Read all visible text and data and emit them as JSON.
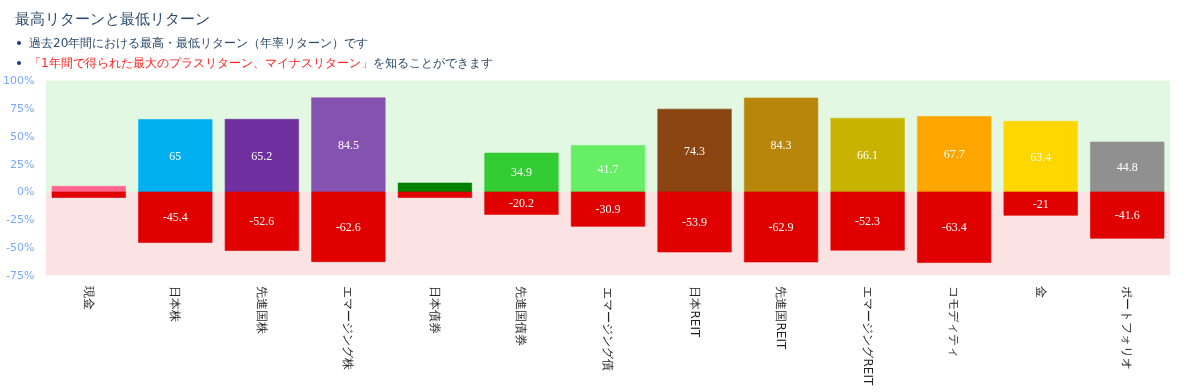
{
  "chart_data": {
    "type": "bar",
    "title": "最高リターンと最低リターン",
    "subtitle": "過去20年間における最高・最低リターン（年率リターン）です",
    "annotations": [
      "「1年間で得られた最大のプラスリターン、マイナスリターン」",
      "を知ることができます"
    ],
    "categories": [
      "現金",
      "日本株",
      "先進国株",
      "エマージング株",
      "日本債券",
      "先進国債券",
      "エマージング債",
      "日本REIT",
      "先進国REIT",
      "エマージングREIT",
      "コモディティ",
      "金",
      "ポートフォリオ"
    ],
    "stacked": true,
    "series": [
      {
        "colors": [
          "#ff6690",
          "#00b0f0",
          "#7030a0",
          "#8652b0",
          "#008000",
          "#33cc33",
          "#66ee66",
          "#8b4513",
          "#b8860b",
          "#c8b400",
          "#ffa500",
          "#ffd700",
          "#909090"
        ],
        "values": [
          5,
          65,
          65.2,
          84.5,
          8,
          34.9,
          41.7,
          74.3,
          84.3,
          66.1,
          67.7,
          63.4,
          44.8
        ],
        "value_labels": [
          null,
          "65",
          "65.2",
          "84.5",
          null,
          "34.9",
          "41.7",
          "74.3",
          "84.3",
          "66.1",
          "67.7",
          "63.4",
          "44.8"
        ]
      },
      {
        "color": "#e00000",
        "values": [
          -5,
          -45.4,
          -52.6,
          -62.6,
          -5,
          -20.2,
          -30.9,
          -53.9,
          -62.9,
          -52.3,
          -63.4,
          -21,
          -41.6
        ],
        "value_labels": [
          null,
          "-45.4",
          "-52.6",
          "-62.6",
          null,
          "-20.2",
          "-30.9",
          "-53.9",
          "-62.9",
          "-52.3",
          "-63.4",
          "-21",
          "-41.6"
        ]
      }
    ],
    "ylim": [
      -75,
      100
    ],
    "yticks": [
      {
        "value": -75,
        "label": "-75%"
      },
      {
        "value": -50,
        "label": "-50%"
      },
      {
        "value": -25,
        "label": "-25%"
      },
      {
        "value": 0,
        "label": "0%"
      },
      {
        "value": 25,
        "label": "25%"
      },
      {
        "value": 50,
        "label": "50%"
      },
      {
        "value": 75,
        "label": "75%"
      },
      {
        "value": 100,
        "label": "100%"
      }
    ],
    "grid": "y",
    "bands": [
      {
        "axis": "y",
        "from": 0,
        "to": 100,
        "color": "#e3f8e3"
      },
      {
        "axis": "y",
        "from": -75,
        "to": 0,
        "color": "#fbe3e3"
      }
    ]
  }
}
